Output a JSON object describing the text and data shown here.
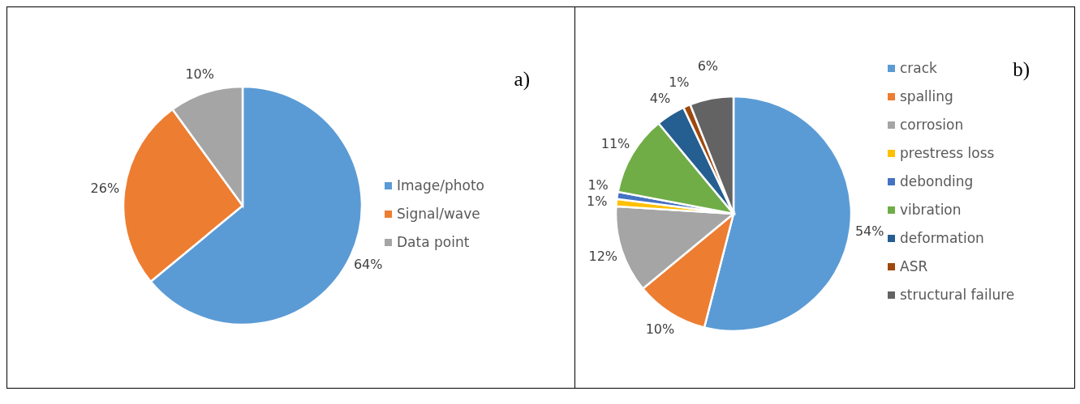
{
  "chart_data": [
    {
      "type": "pie",
      "categories": [
        "Image/photo",
        "Signal/wave",
        "Data point"
      ],
      "values": [
        64,
        26,
        10
      ],
      "colors": [
        "#5b9bd5",
        "#ed7d31",
        "#a5a5a5"
      ],
      "value_labels": [
        "64%",
        "26%",
        "10%"
      ],
      "legend": "right",
      "annotations": [
        "a)"
      ]
    },
    {
      "type": "pie",
      "categories": [
        "crack",
        "spalling",
        "corrosion",
        "prestress loss",
        "debonding",
        "vibration",
        "deformation",
        "ASR",
        "structural failure"
      ],
      "values": [
        54,
        10,
        12,
        1,
        1,
        11,
        4,
        1,
        6
      ],
      "colors": [
        "#5b9bd5",
        "#ed7d31",
        "#a5a5a5",
        "#ffc000",
        "#4472c4",
        "#70ad47",
        "#255e91",
        "#9e480e",
        "#636363"
      ],
      "value_labels": [
        "54%",
        "10%",
        "12%",
        "1%",
        "1%",
        "11%",
        "4%",
        "1%",
        "6%"
      ],
      "legend": "right",
      "annotations": [
        "b)"
      ]
    }
  ]
}
